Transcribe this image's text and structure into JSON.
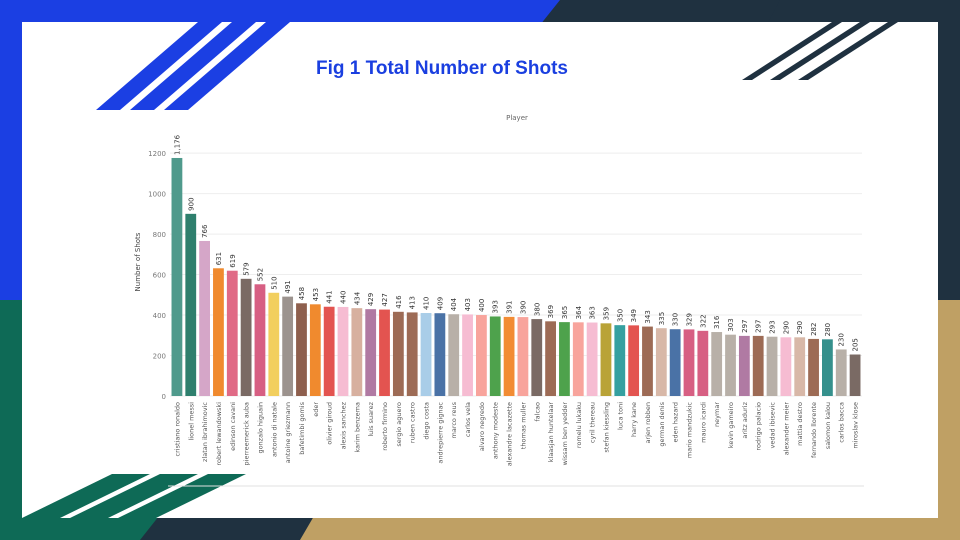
{
  "slide": {
    "title": "Fig 1 Total Number of Shots",
    "colors": {
      "navy": "#1f3140",
      "blue": "#1b3fe3",
      "green": "#0e6a56",
      "tan": "#bfa064",
      "title": "#1a3fe0"
    }
  },
  "chart_data": {
    "type": "bar",
    "title": "Fig 1 Total Number of Shots",
    "header_label": "Player",
    "ylabel": "Number of Shots",
    "xlabel": "",
    "ylim": [
      0,
      1250
    ],
    "yticks": [
      0,
      200,
      400,
      600,
      800,
      1000,
      1200
    ],
    "grid": true,
    "categories": [
      "cristiano ronaldo",
      "lionel messi",
      "zlatan ibrahimovic",
      "robert lewandowski",
      "edinson cavani",
      "pierreemerick auba",
      "gonzalo higuain",
      "antonio di natale",
      "antoine griezmann",
      "bafetimbi gomis",
      "eder",
      "olivier giroud",
      "alexis sanchez",
      "karim benzema",
      "luis suarez",
      "roberto firmino",
      "sergio aguero",
      "ruben castro",
      "diego costa",
      "andrepierre gignac",
      "marco reus",
      "carlos vela",
      "alvaro negredo",
      "anthony modeste",
      "alexandre lacazette",
      "thomas muller",
      "falcao",
      "klaasjan huntelaar",
      "wissam ben yedder",
      "romelu lukaku",
      "cyril thereau",
      "stefan kiessling",
      "luca toni",
      "harry kane",
      "arjen robben",
      "german denis",
      "eden hazard",
      "mario mandzukic",
      "mauro icardi",
      "neymar",
      "kevin gameiro",
      "aritz aduriz",
      "rodrigo palacio",
      "vedad ibisevic",
      "alexander meier",
      "mattia destro",
      "fernando llorente",
      "salomon kalou",
      "carlos bacca",
      "miroslav klose"
    ],
    "value_labels": [
      "1,176",
      "900",
      "766",
      "631",
      "619",
      "579",
      "552",
      "510",
      "491",
      "458",
      "453",
      "441",
      "440",
      "434",
      "429",
      "427",
      "416",
      "413",
      "410",
      "409",
      "404",
      "403",
      "400",
      "393",
      "391",
      "390",
      "380",
      "369",
      "365",
      "364",
      "363",
      "359",
      "350",
      "349",
      "343",
      "335",
      "330",
      "329",
      "322",
      "316",
      "303",
      "297",
      "297",
      "293",
      "290",
      "290",
      "282",
      "280",
      "230",
      "205"
    ],
    "values": [
      1176,
      900,
      766,
      631,
      619,
      579,
      552,
      510,
      491,
      458,
      453,
      441,
      440,
      434,
      429,
      427,
      416,
      413,
      410,
      409,
      404,
      403,
      400,
      393,
      391,
      390,
      380,
      369,
      365,
      364,
      363,
      359,
      350,
      349,
      343,
      335,
      330,
      329,
      322,
      316,
      303,
      297,
      297,
      293,
      290,
      290,
      282,
      280,
      230,
      205
    ],
    "colors": [
      "#4f9a8c",
      "#2e7f6d",
      "#d5a6c8",
      "#f08a2e",
      "#e06a86",
      "#7a6a64",
      "#d75f83",
      "#f2cf5e",
      "#9c938e",
      "#8e5f4d",
      "#f08a2e",
      "#e35450",
      "#f6bcd2",
      "#d7b09f",
      "#b07aa3",
      "#e35450",
      "#9d6b55",
      "#9d6b55",
      "#a9cde8",
      "#4a72a6",
      "#b8b0a8",
      "#f6bcd2",
      "#f8a49c",
      "#4ea24c",
      "#f28c34",
      "#f8a49c",
      "#7a6a64",
      "#9d6b55",
      "#4ea24c",
      "#f8a49c",
      "#f6bcd2",
      "#b9a337",
      "#35a0a0",
      "#e35450",
      "#9d6b55",
      "#d8b8a8",
      "#4a72a6",
      "#d75f83",
      "#d75f83",
      "#b8b0a8",
      "#b8b0a8",
      "#b07aa3",
      "#9d6b55",
      "#b8b0a8",
      "#f6bcd2",
      "#d8b8a8",
      "#9d6b55",
      "#35908c",
      "#b8b0a8",
      "#7a6a64"
    ]
  }
}
